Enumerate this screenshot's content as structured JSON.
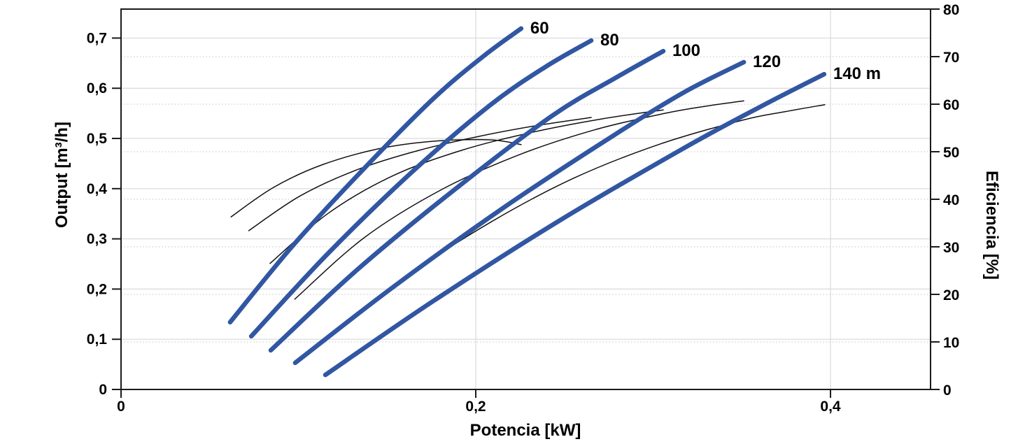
{
  "chart_data": {
    "type": "line",
    "title": "",
    "x": {
      "label": "Potencia [kW]",
      "lim": [
        0,
        0.4564
      ],
      "ticks": [
        0,
        0.2,
        0.4
      ],
      "tick_labels": [
        "0",
        "0,2",
        "0,4"
      ]
    },
    "y_left": {
      "label": "Output [m³/h]",
      "lim": [
        0,
        0.7577
      ],
      "ticks": [
        0,
        0.1,
        0.2,
        0.3,
        0.4,
        0.5,
        0.6,
        0.7
      ],
      "tick_labels": [
        "0",
        "0,1",
        "0,2",
        "0,3",
        "0,4",
        "0,5",
        "0,6",
        "0,7"
      ]
    },
    "y_right": {
      "label": "Eficiencia [%]",
      "lim": [
        0,
        80
      ],
      "ticks": [
        0,
        10,
        20,
        30,
        40,
        50,
        60,
        70,
        80
      ],
      "tick_labels": [
        "0",
        "10",
        "20",
        "30",
        "40",
        "50",
        "60",
        "70",
        "80"
      ]
    },
    "grid": {
      "solid_color": "#d9d9d9",
      "dotted_color": "#cfcfcf"
    },
    "colors": {
      "frame": "#1a1a1a",
      "pump_curve": "#3156a2",
      "efficiency_curve": "#111111",
      "label_text": "#000000"
    },
    "legend_position": "curve-end-labels",
    "series": [
      {
        "id": "pump-60",
        "label": "60",
        "axis": "left",
        "color": "#3156a2",
        "width": 6.5,
        "points": [
          [
            0.0615,
            0.134
          ],
          [
            0.097,
            0.287
          ],
          [
            0.137,
            0.44
          ],
          [
            0.176,
            0.579
          ],
          [
            0.204,
            0.663
          ],
          [
            0.2256,
            0.719
          ]
        ]
      },
      {
        "id": "pump-80",
        "label": "80",
        "axis": "left",
        "color": "#3156a2",
        "width": 6.5,
        "points": [
          [
            0.0734,
            0.106
          ],
          [
            0.117,
            0.272
          ],
          [
            0.164,
            0.433
          ],
          [
            0.208,
            0.566
          ],
          [
            0.239,
            0.642
          ],
          [
            0.2651,
            0.695
          ]
        ]
      },
      {
        "id": "pump-100",
        "label": "100",
        "axis": "left",
        "color": "#3156a2",
        "width": 6.5,
        "points": [
          [
            0.0844,
            0.078
          ],
          [
            0.133,
            0.238
          ],
          [
            0.188,
            0.398
          ],
          [
            0.243,
            0.545
          ],
          [
            0.279,
            0.621
          ],
          [
            0.3057,
            0.674
          ]
        ]
      },
      {
        "id": "pump-120",
        "label": "120",
        "axis": "left",
        "color": "#3156a2",
        "width": 6.5,
        "points": [
          [
            0.0982,
            0.053
          ],
          [
            0.153,
            0.203
          ],
          [
            0.216,
            0.363
          ],
          [
            0.279,
            0.509
          ],
          [
            0.318,
            0.593
          ],
          [
            0.3511,
            0.652
          ]
        ]
      },
      {
        "id": "pump-140",
        "label": "140 m",
        "axis": "left",
        "color": "#3156a2",
        "width": 6.5,
        "points": [
          [
            0.1152,
            0.029
          ],
          [
            0.176,
            0.176
          ],
          [
            0.247,
            0.336
          ],
          [
            0.318,
            0.482
          ],
          [
            0.362,
            0.566
          ],
          [
            0.3964,
            0.628
          ]
        ]
      },
      {
        "id": "eff-60",
        "label": "",
        "axis": "right",
        "color": "#111111",
        "width": 1.5,
        "points": [
          [
            0.062,
            36.3
          ],
          [
            0.086,
            42.5
          ],
          [
            0.113,
            47.2
          ],
          [
            0.145,
            50.6
          ],
          [
            0.176,
            52.2
          ],
          [
            0.208,
            52.5
          ],
          [
            0.2256,
            51.5
          ]
        ]
      },
      {
        "id": "eff-80",
        "label": "",
        "axis": "right",
        "color": "#111111",
        "width": 1.5,
        "points": [
          [
            0.072,
            33.4
          ],
          [
            0.101,
            40.7
          ],
          [
            0.133,
            46.2
          ],
          [
            0.168,
            50.3
          ],
          [
            0.204,
            53.4
          ],
          [
            0.236,
            55.6
          ],
          [
            0.2651,
            57.2
          ]
        ]
      },
      {
        "id": "eff-100",
        "label": "",
        "axis": "right",
        "color": "#111111",
        "width": 1.5,
        "points": [
          [
            0.084,
            26.5
          ],
          [
            0.117,
            37.1
          ],
          [
            0.153,
            44.9
          ],
          [
            0.192,
            50.3
          ],
          [
            0.232,
            54.1
          ],
          [
            0.271,
            56.9
          ],
          [
            0.3057,
            58.8
          ]
        ]
      },
      {
        "id": "eff-120",
        "label": "",
        "axis": "right",
        "color": "#111111",
        "width": 1.5,
        "points": [
          [
            0.098,
            19.0
          ],
          [
            0.137,
            31.9
          ],
          [
            0.18,
            41.9
          ],
          [
            0.224,
            49.3
          ],
          [
            0.267,
            54.6
          ],
          [
            0.307,
            58.1
          ],
          [
            0.33,
            59.6
          ],
          [
            0.3511,
            60.7
          ]
        ]
      },
      {
        "id": "eff-140",
        "label": "",
        "axis": "right",
        "color": "#111111",
        "width": 1.5,
        "points": [
          [
            0.115,
            10.6
          ],
          [
            0.161,
            23.8
          ],
          [
            0.208,
            35.1
          ],
          [
            0.255,
            44.4
          ],
          [
            0.303,
            51.5
          ],
          [
            0.35,
            56.6
          ],
          [
            0.374,
            58.4
          ],
          [
            0.3968,
            59.9
          ]
        ]
      }
    ]
  }
}
